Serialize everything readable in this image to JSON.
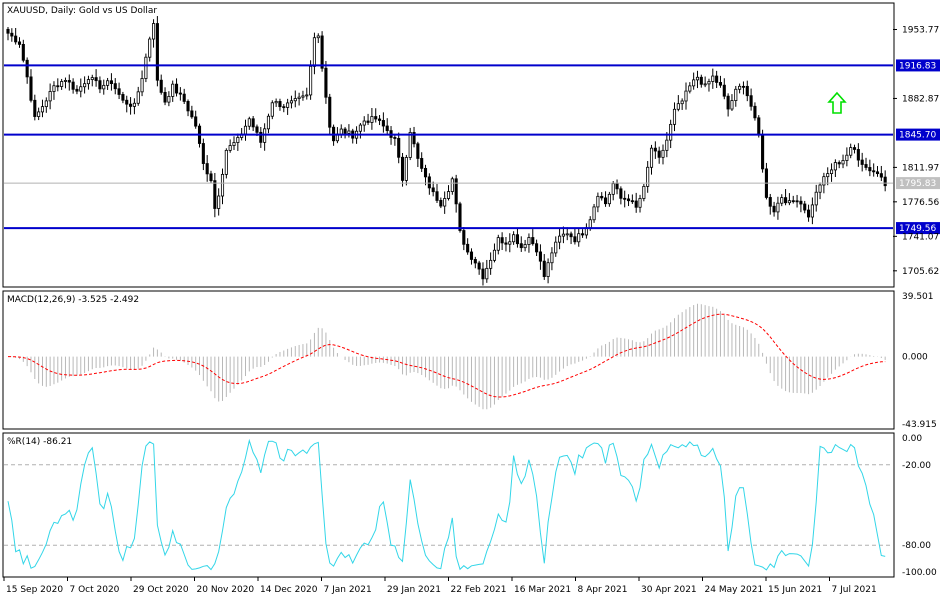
{
  "chart_data": [
    {
      "type": "candlestick",
      "title": "XAUUSD, Daily:  Gold vs US Dollar",
      "y_ticks": [
        "1953.77",
        "1882.87",
        "1811.97",
        "1776.56",
        "1741.07",
        "1705.62"
      ],
      "ylim": [
        1690,
        1980
      ],
      "levels": [
        {
          "label": "1916.83",
          "value": 1916.83
        },
        {
          "label": "1845.70",
          "value": 1845.7
        },
        {
          "label": "1749.56",
          "value": 1749.56
        }
      ],
      "current_price": {
        "label": "1795.83",
        "value": 1795.83
      },
      "signal": {
        "direction": "up",
        "color": "#00e000"
      },
      "x_tick_labels": [
        "15 Sep 2020",
        "7 Oct 2020",
        "29 Oct 2020",
        "20 Nov 2020",
        "14 Dec 2020",
        "7 Jan 2021",
        "29 Jan 2021",
        "22 Feb 2021",
        "16 Mar 2021",
        "8 Apr 2021",
        "30 Apr 2021",
        "24 May 2021",
        "15 Jun 2021",
        "7 Jul 2021"
      ],
      "close_anchors": [
        [
          0,
          1950
        ],
        [
          3,
          1940
        ],
        [
          5,
          1905
        ],
        [
          7,
          1862
        ],
        [
          9,
          1875
        ],
        [
          12,
          1895
        ],
        [
          15,
          1903
        ],
        [
          18,
          1890
        ],
        [
          21,
          1905
        ],
        [
          24,
          1895
        ],
        [
          27,
          1900
        ],
        [
          30,
          1880
        ],
        [
          33,
          1875
        ],
        [
          35,
          1905
        ],
        [
          37,
          1945
        ],
        [
          38,
          1962
        ],
        [
          39,
          1900
        ],
        [
          41,
          1880
        ],
        [
          43,
          1895
        ],
        [
          46,
          1880
        ],
        [
          49,
          1855
        ],
        [
          51,
          1815
        ],
        [
          53,
          1800
        ],
        [
          54,
          1770
        ],
        [
          55,
          1785
        ],
        [
          57,
          1830
        ],
        [
          60,
          1840
        ],
        [
          63,
          1862
        ],
        [
          66,
          1838
        ],
        [
          69,
          1880
        ],
        [
          72,
          1875
        ],
        [
          75,
          1880
        ],
        [
          78,
          1885
        ],
        [
          80,
          1945
        ],
        [
          81,
          1950
        ],
        [
          82,
          1915
        ],
        [
          84,
          1855
        ],
        [
          85,
          1840
        ],
        [
          87,
          1850
        ],
        [
          90,
          1845
        ],
        [
          93,
          1860
        ],
        [
          96,
          1862
        ],
        [
          99,
          1850
        ],
        [
          101,
          1840
        ],
        [
          103,
          1800
        ],
        [
          105,
          1850
        ],
        [
          107,
          1820
        ],
        [
          109,
          1800
        ],
        [
          111,
          1785
        ],
        [
          113,
          1775
        ],
        [
          115,
          1790
        ],
        [
          116,
          1800
        ],
        [
          118,
          1745
        ],
        [
          120,
          1725
        ],
        [
          122,
          1715
        ],
        [
          124,
          1700
        ],
        [
          126,
          1718
        ],
        [
          128,
          1738
        ],
        [
          130,
          1735
        ],
        [
          132,
          1742
        ],
        [
          134,
          1730
        ],
        [
          136,
          1740
        ],
        [
          138,
          1728
        ],
        [
          140,
          1700
        ],
        [
          142,
          1725
        ],
        [
          144,
          1740
        ],
        [
          146,
          1745
        ],
        [
          148,
          1738
        ],
        [
          150,
          1745
        ],
        [
          152,
          1760
        ],
        [
          154,
          1785
        ],
        [
          156,
          1775
        ],
        [
          158,
          1795
        ],
        [
          160,
          1780
        ],
        [
          162,
          1780
        ],
        [
          164,
          1770
        ],
        [
          166,
          1790
        ],
        [
          168,
          1832
        ],
        [
          170,
          1820
        ],
        [
          172,
          1840
        ],
        [
          174,
          1870
        ],
        [
          176,
          1880
        ],
        [
          178,
          1895
        ],
        [
          180,
          1905
        ],
        [
          182,
          1895
        ],
        [
          184,
          1905
        ],
        [
          186,
          1895
        ],
        [
          188,
          1872
        ],
        [
          190,
          1890
        ],
        [
          192,
          1898
        ],
        [
          194,
          1875
        ],
        [
          196,
          1845
        ],
        [
          198,
          1780
        ],
        [
          200,
          1768
        ],
        [
          202,
          1782
        ],
        [
          204,
          1775
        ],
        [
          206,
          1780
        ],
        [
          208,
          1770
        ],
        [
          209,
          1760
        ],
        [
          210,
          1775
        ],
        [
          212,
          1795
        ],
        [
          214,
          1805
        ],
        [
          216,
          1815
        ],
        [
          218,
          1820
        ],
        [
          220,
          1830
        ],
        [
          221,
          1830
        ],
        [
          222,
          1822
        ],
        [
          224,
          1812
        ],
        [
          226,
          1808
        ],
        [
          228,
          1803
        ],
        [
          229,
          1796
        ]
      ],
      "price_bar_count": 230
    },
    {
      "type": "histogram+line",
      "title": "MACD(12,26,9) -3.525 -2.492",
      "y_ticks": [
        "39.501",
        "0.000",
        "-43.915"
      ],
      "ylim": [
        -43.915,
        39.501
      ],
      "series": [
        {
          "name": "main",
          "kind": "histogram"
        },
        {
          "name": "signal",
          "kind": "line",
          "color": "#ff0000"
        }
      ]
    },
    {
      "type": "line",
      "title": "%R(14) -86.21",
      "y_ticks": [
        "0.00",
        "-20.00",
        "-80.00",
        "-100.00"
      ],
      "ylim": [
        -100,
        0
      ],
      "levels": [
        -20,
        -80
      ],
      "color": "#33d6e8"
    }
  ]
}
